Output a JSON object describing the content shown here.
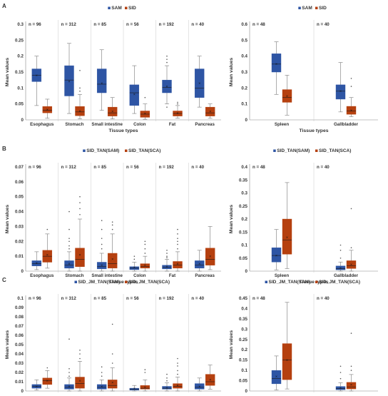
{
  "colors": {
    "series_a": "#2E55A4",
    "series_b": "#B5400F",
    "axis": "#888888",
    "divider": "#C8C8C8"
  },
  "rows": [
    {
      "letter": "A",
      "legend": [
        "SAM",
        "SID"
      ]
    },
    {
      "letter": "B",
      "legend": [
        "SID_TAN(SAM)",
        "SID_TAN(SCA)"
      ]
    },
    {
      "letter": "C",
      "legend": [
        "SID_JM_TAN(SAM)",
        "SID_JM_TAN(SCA)"
      ]
    }
  ],
  "chart_data": [
    {
      "type": "boxplot",
      "panel": "A-left",
      "ylabel": "Mean values",
      "xlabel": "Tissue types",
      "ylim": [
        0,
        0.3
      ],
      "yticks": [
        0,
        0.05,
        0.1,
        0.15,
        0.2,
        0.25,
        0.3
      ],
      "grid": false,
      "legend_position": "top-center",
      "series": [
        "SAM",
        "SID"
      ],
      "categories": [
        {
          "name": "Esophagus",
          "n": "n = 96",
          "boxes": [
            {
              "min": 0.045,
              "q1": 0.12,
              "median": 0.14,
              "q3": 0.16,
              "max": 0.2,
              "mean": 0.14,
              "outliers": []
            },
            {
              "min": 0.005,
              "q1": 0.022,
              "median": 0.03,
              "q3": 0.042,
              "max": 0.065,
              "mean": 0.032,
              "outliers": []
            }
          ]
        },
        {
          "name": "Stomach",
          "n": "n = 312",
          "boxes": [
            {
              "min": 0.02,
              "q1": 0.075,
              "median": 0.125,
              "q3": 0.17,
              "max": 0.24,
              "mean": 0.12,
              "outliers": []
            },
            {
              "min": 0.003,
              "q1": 0.013,
              "median": 0.025,
              "q3": 0.042,
              "max": 0.08,
              "mean": 0.028,
              "outliers": [
                0.09,
                0.1,
                0.155
              ]
            }
          ]
        },
        {
          "name": "Small intestine",
          "n": "n = 85",
          "boxes": [
            {
              "min": 0.03,
              "q1": 0.085,
              "median": 0.112,
              "q3": 0.16,
              "max": 0.22,
              "mean": 0.115,
              "outliers": []
            },
            {
              "min": 0.003,
              "q1": 0.012,
              "median": 0.022,
              "q3": 0.04,
              "max": 0.07,
              "mean": 0.026,
              "outliers": []
            }
          ]
        },
        {
          "name": "Colon",
          "n": "n = 56",
          "boxes": [
            {
              "min": 0.02,
              "q1": 0.045,
              "median": 0.085,
              "q3": 0.11,
              "max": 0.17,
              "mean": 0.08,
              "outliers": []
            },
            {
              "min": 0.002,
              "q1": 0.008,
              "median": 0.018,
              "q3": 0.028,
              "max": 0.05,
              "mean": 0.02,
              "outliers": [
                0.07
              ]
            }
          ]
        },
        {
          "name": "Fat",
          "n": "n = 192",
          "boxes": [
            {
              "min": 0.05,
              "q1": 0.085,
              "median": 0.102,
              "q3": 0.125,
              "max": 0.17,
              "mean": 0.105,
              "outliers": [
                0.18,
                0.19,
                0.2,
                0.04
              ]
            },
            {
              "min": 0.005,
              "q1": 0.012,
              "median": 0.02,
              "q3": 0.028,
              "max": 0.045,
              "mean": 0.021,
              "outliers": [
                0.05,
                0.055
              ]
            }
          ]
        },
        {
          "name": "Pancreas",
          "n": "n = 40",
          "boxes": [
            {
              "min": 0.04,
              "q1": 0.07,
              "median": 0.1,
              "q3": 0.16,
              "max": 0.2,
              "mean": 0.115,
              "outliers": []
            },
            {
              "min": 0.005,
              "q1": 0.012,
              "median": 0.022,
              "q3": 0.04,
              "max": 0.05,
              "mean": 0.026,
              "outliers": []
            }
          ]
        }
      ]
    },
    {
      "type": "boxplot",
      "panel": "A-right",
      "ylabel": "Mean values",
      "xlabel": "Tissue types",
      "ylim": [
        0,
        0.6
      ],
      "yticks": [
        0,
        0.1,
        0.2,
        0.3,
        0.4,
        0.5,
        0.6
      ],
      "grid": false,
      "legend_position": "top-center",
      "series": [
        "SAM",
        "SID"
      ],
      "categories": [
        {
          "name": "Spleen",
          "n": "n = 48",
          "boxes": [
            {
              "min": 0.16,
              "q1": 0.3,
              "median": 0.35,
              "q3": 0.415,
              "max": 0.49,
              "mean": 0.35,
              "outliers": []
            },
            {
              "min": 0.03,
              "q1": 0.11,
              "median": 0.14,
              "q3": 0.19,
              "max": 0.28,
              "mean": 0.15,
              "outliers": []
            }
          ]
        },
        {
          "name": "Gallbladder",
          "n": "n = 40",
          "boxes": [
            {
              "min": 0.05,
              "q1": 0.13,
              "median": 0.18,
              "q3": 0.22,
              "max": 0.36,
              "mean": 0.18,
              "outliers": []
            },
            {
              "min": 0.02,
              "q1": 0.035,
              "median": 0.055,
              "q3": 0.085,
              "max": 0.14,
              "mean": 0.06,
              "outliers": [
                0.21,
                0.26
              ]
            }
          ]
        }
      ]
    },
    {
      "type": "boxplot",
      "panel": "B-left",
      "ylabel": "Mean values",
      "xlabel": "Tissue types",
      "ylim": [
        0,
        0.07
      ],
      "yticks": [
        0,
        0.01,
        0.02,
        0.03,
        0.04,
        0.05,
        0.06,
        0.07
      ],
      "grid": false,
      "legend_position": "top-center",
      "series": [
        "SID_TAN(SAM)",
        "SID_TAN(SCA)"
      ],
      "categories": [
        {
          "name": "Esophagus",
          "n": "n = 96",
          "boxes": [
            {
              "min": 0.001,
              "q1": 0.0035,
              "median": 0.005,
              "q3": 0.007,
              "max": 0.013,
              "mean": 0.0055,
              "outliers": []
            },
            {
              "min": 0.002,
              "q1": 0.006,
              "median": 0.01,
              "q3": 0.014,
              "max": 0.025,
              "mean": 0.011,
              "outliers": [
                0.028
              ]
            }
          ]
        },
        {
          "name": "Stomach",
          "n": "n = 312",
          "boxes": [
            {
              "min": 0.0,
              "q1": 0.002,
              "median": 0.004,
              "q3": 0.007,
              "max": 0.013,
              "mean": 0.005,
              "outliers": [
                0.015,
                0.017,
                0.02,
                0.022,
                0.028,
                0.04
              ]
            },
            {
              "min": 0.0,
              "q1": 0.003,
              "median": 0.008,
              "q3": 0.0155,
              "max": 0.035,
              "mean": 0.011,
              "outliers": [
                0.038,
                0.042,
                0.046,
                0.05
              ]
            }
          ]
        },
        {
          "name": "Small intestine",
          "n": "n = 85",
          "boxes": [
            {
              "min": 0.0,
              "q1": 0.0015,
              "median": 0.003,
              "q3": 0.006,
              "max": 0.012,
              "mean": 0.004,
              "outliers": [
                0.015,
                0.018,
                0.022,
                0.028,
                0.034
              ]
            },
            {
              "min": 0.0,
              "q1": 0.002,
              "median": 0.005,
              "q3": 0.012,
              "max": 0.025,
              "mean": 0.008,
              "outliers": [
                0.028,
                0.031,
                0.033
              ]
            }
          ]
        },
        {
          "name": "Colon",
          "n": "n = 56",
          "boxes": [
            {
              "min": 0.0,
              "q1": 0.001,
              "median": 0.002,
              "q3": 0.003,
              "max": 0.006,
              "mean": 0.0025,
              "outliers": [
                0.008,
                0.01
              ]
            },
            {
              "min": 0.0,
              "q1": 0.002,
              "median": 0.003,
              "q3": 0.005,
              "max": 0.01,
              "mean": 0.004,
              "outliers": [
                0.012,
                0.015,
                0.018,
                0.02
              ]
            }
          ]
        },
        {
          "name": "Fat",
          "n": "n = 192",
          "boxes": [
            {
              "min": 0.0,
              "q1": 0.0015,
              "median": 0.0025,
              "q3": 0.004,
              "max": 0.008,
              "mean": 0.003,
              "outliers": [
                0.009,
                0.01,
                0.012,
                0.014
              ]
            },
            {
              "min": 0.0,
              "q1": 0.002,
              "median": 0.004,
              "q3": 0.0065,
              "max": 0.013,
              "mean": 0.005,
              "outliers": [
                0.015,
                0.018,
                0.02,
                0.022,
                0.025,
                0.028
              ]
            }
          ]
        },
        {
          "name": "Pancreas",
          "n": "n = 40",
          "boxes": [
            {
              "min": 0.0,
              "q1": 0.002,
              "median": 0.004,
              "q3": 0.007,
              "max": 0.014,
              "mean": 0.005,
              "outliers": []
            },
            {
              "min": 0.001,
              "q1": 0.004,
              "median": 0.008,
              "q3": 0.0155,
              "max": 0.03,
              "mean": 0.01,
              "outliers": []
            }
          ]
        }
      ]
    },
    {
      "type": "boxplot",
      "panel": "B-right",
      "ylabel": "Mean values",
      "xlabel": "Tissue types",
      "ylim": [
        0,
        0.4
      ],
      "yticks": [
        0,
        0.05,
        0.1,
        0.15,
        0.2,
        0.25,
        0.3,
        0.35,
        0.4
      ],
      "grid": false,
      "legend_position": "top-center",
      "series": [
        "SID_TAN(SAM)",
        "SID_TAN(SCA)"
      ],
      "categories": [
        {
          "name": "Spleen",
          "n": "n = 48",
          "boxes": [
            {
              "min": 0.005,
              "q1": 0.035,
              "median": 0.06,
              "q3": 0.09,
              "max": 0.16,
              "mean": 0.06,
              "outliers": []
            },
            {
              "min": 0.01,
              "q1": 0.065,
              "median": 0.12,
              "q3": 0.2,
              "max": 0.34,
              "mean": 0.13,
              "outliers": []
            }
          ]
        },
        {
          "name": "Gallbladder",
          "n": "n = 40",
          "boxes": [
            {
              "min": 0.0,
              "q1": 0.005,
              "median": 0.01,
              "q3": 0.02,
              "max": 0.035,
              "mean": 0.012,
              "outliers": [
                0.05,
                0.08,
                0.1
              ]
            },
            {
              "min": 0.0,
              "q1": 0.01,
              "median": 0.02,
              "q3": 0.04,
              "max": 0.08,
              "mean": 0.025,
              "outliers": [
                0.09,
                0.24
              ]
            }
          ]
        }
      ]
    },
    {
      "type": "boxplot",
      "panel": "C-left",
      "ylabel": "Mean values",
      "xlabel": "Tissue types",
      "ylim": [
        0,
        0.1
      ],
      "yticks": [
        0,
        0.01,
        0.02,
        0.03,
        0.04,
        0.05,
        0.06,
        0.07,
        0.08,
        0.09,
        0.1
      ],
      "grid": false,
      "legend_position": "top-center",
      "series": [
        "SID_JM_TAN(SAM)",
        "SID_JM_TAN(SCA)"
      ],
      "categories": [
        {
          "name": "Esophagus",
          "n": "n = 96",
          "boxes": [
            {
              "min": 0.001,
              "q1": 0.003,
              "median": 0.005,
              "q3": 0.007,
              "max": 0.012,
              "mean": 0.005,
              "outliers": []
            },
            {
              "min": 0.003,
              "q1": 0.007,
              "median": 0.011,
              "q3": 0.014,
              "max": 0.022,
              "mean": 0.011,
              "outliers": [
                0.025
              ]
            }
          ]
        },
        {
          "name": "Stomach",
          "n": "n = 312",
          "boxes": [
            {
              "min": 0.0,
              "q1": 0.002,
              "median": 0.004,
              "q3": 0.007,
              "max": 0.014,
              "mean": 0.005,
              "outliers": [
                0.016,
                0.02,
                0.024,
                0.056
              ]
            },
            {
              "min": 0.0,
              "q1": 0.003,
              "median": 0.008,
              "q3": 0.015,
              "max": 0.032,
              "mean": 0.011,
              "outliers": [
                0.035,
                0.04,
                0.044
              ]
            }
          ]
        },
        {
          "name": "Small intestine",
          "n": "n = 85",
          "boxes": [
            {
              "min": 0.0,
              "q1": 0.002,
              "median": 0.004,
              "q3": 0.007,
              "max": 0.012,
              "mean": 0.005,
              "outliers": [
                0.016,
                0.02,
                0.026
              ]
            },
            {
              "min": 0.0,
              "q1": 0.003,
              "median": 0.006,
              "q3": 0.012,
              "max": 0.025,
              "mean": 0.009,
              "outliers": [
                0.03,
                0.04,
                0.072
              ]
            }
          ]
        },
        {
          "name": "Colon",
          "n": "n = 56",
          "boxes": [
            {
              "min": 0.0,
              "q1": 0.001,
              "median": 0.002,
              "q3": 0.003,
              "max": 0.006,
              "mean": 0.0025,
              "outliers": []
            },
            {
              "min": 0.0,
              "q1": 0.002,
              "median": 0.003,
              "q3": 0.006,
              "max": 0.012,
              "mean": 0.004,
              "outliers": [
                0.02,
                0.023
              ]
            }
          ]
        },
        {
          "name": "Fat",
          "n": "n = 192",
          "boxes": [
            {
              "min": 0.0,
              "q1": 0.002,
              "median": 0.003,
              "q3": 0.005,
              "max": 0.009,
              "mean": 0.0035,
              "outliers": [
                0.011,
                0.014,
                0.018
              ]
            },
            {
              "min": 0.0,
              "q1": 0.003,
              "median": 0.005,
              "q3": 0.008,
              "max": 0.015,
              "mean": 0.006,
              "outliers": [
                0.018,
                0.022,
                0.027,
                0.03,
                0.035
              ]
            }
          ]
        },
        {
          "name": "Pancreas",
          "n": "n = 40",
          "boxes": [
            {
              "min": 0.0,
              "q1": 0.002,
              "median": 0.004,
              "q3": 0.008,
              "max": 0.014,
              "mean": 0.005,
              "outliers": []
            },
            {
              "min": 0.002,
              "q1": 0.006,
              "median": 0.01,
              "q3": 0.018,
              "max": 0.028,
              "mean": 0.012,
              "outliers": []
            }
          ]
        }
      ]
    },
    {
      "type": "boxplot",
      "panel": "C-right",
      "ylabel": "Mean values",
      "xlabel": "Tissue types",
      "ylim": [
        0,
        0.45
      ],
      "yticks": [
        0,
        0.05,
        0.1,
        0.15,
        0.2,
        0.25,
        0.3,
        0.35,
        0.4,
        0.45
      ],
      "grid": false,
      "legend_position": "top-center",
      "series": [
        "SID_JM_TAN(SAM)",
        "SID_JM_TAN(SCA)"
      ],
      "categories": [
        {
          "name": "Spleen",
          "n": "n = 48",
          "boxes": [
            {
              "min": 0.005,
              "q1": 0.035,
              "median": 0.06,
              "q3": 0.1,
              "max": 0.17,
              "mean": 0.07,
              "outliers": []
            },
            {
              "min": 0.01,
              "q1": 0.055,
              "median": 0.15,
              "q3": 0.23,
              "max": 0.43,
              "mean": 0.15,
              "outliers": []
            }
          ]
        },
        {
          "name": "Gallbladder",
          "n": "n = 40",
          "boxes": [
            {
              "min": 0.0,
              "q1": 0.006,
              "median": 0.012,
              "q3": 0.022,
              "max": 0.04,
              "mean": 0.015,
              "outliers": [
                0.06,
                0.09,
                0.12
              ]
            },
            {
              "min": 0.0,
              "q1": 0.01,
              "median": 0.02,
              "q3": 0.042,
              "max": 0.08,
              "mean": 0.03,
              "outliers": [
                0.1,
                0.12,
                0.28
              ]
            }
          ]
        }
      ]
    }
  ]
}
